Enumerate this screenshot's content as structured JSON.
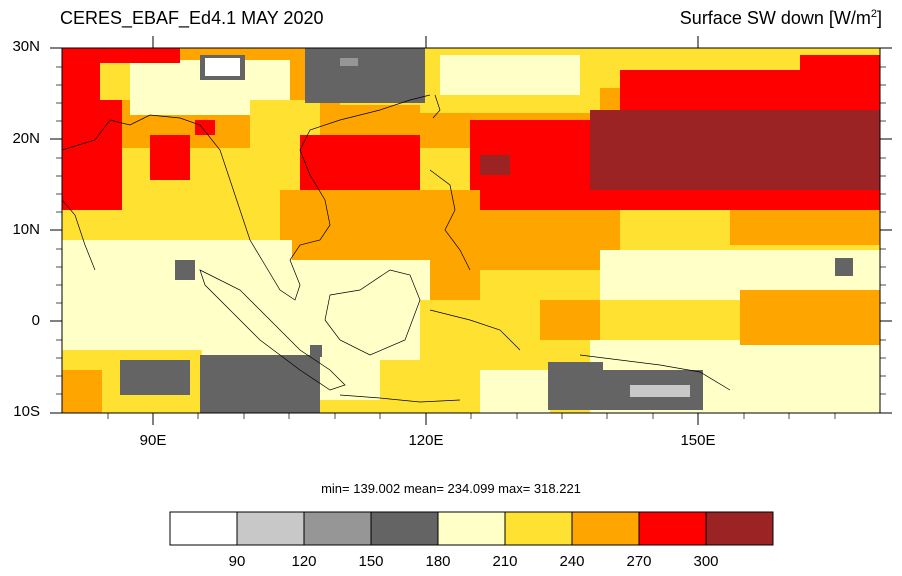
{
  "header": {
    "title_left": "CERES_EBAF_Ed4.1 MAY 2020",
    "title_right_prefix": "Surface SW down [W/m",
    "title_right_sup": "2",
    "title_right_suffix": "]"
  },
  "axes": {
    "lat_labels": [
      "30N",
      "20N",
      "10N",
      "0",
      "10S"
    ],
    "lon_labels": [
      "90E",
      "120E",
      "150E"
    ]
  },
  "stats_text": "min= 139.002  mean= 234.099  max= 318.221",
  "colorbar": {
    "labels": [
      "90",
      "120",
      "150",
      "180",
      "210",
      "240",
      "270",
      "300"
    ],
    "colors": [
      "#ffffff",
      "#c8c8c8",
      "#969696",
      "#646464",
      "#ffffc8",
      "#ffe132",
      "#ffa500",
      "#ff0000",
      "#9b2323"
    ]
  },
  "map": {
    "region": "South/Southeast Asia and Western Pacific",
    "lon_range": [
      80,
      170
    ],
    "lat_range": [
      -10,
      30
    ],
    "variable": "Surface SW down",
    "units": "W/m2"
  }
}
